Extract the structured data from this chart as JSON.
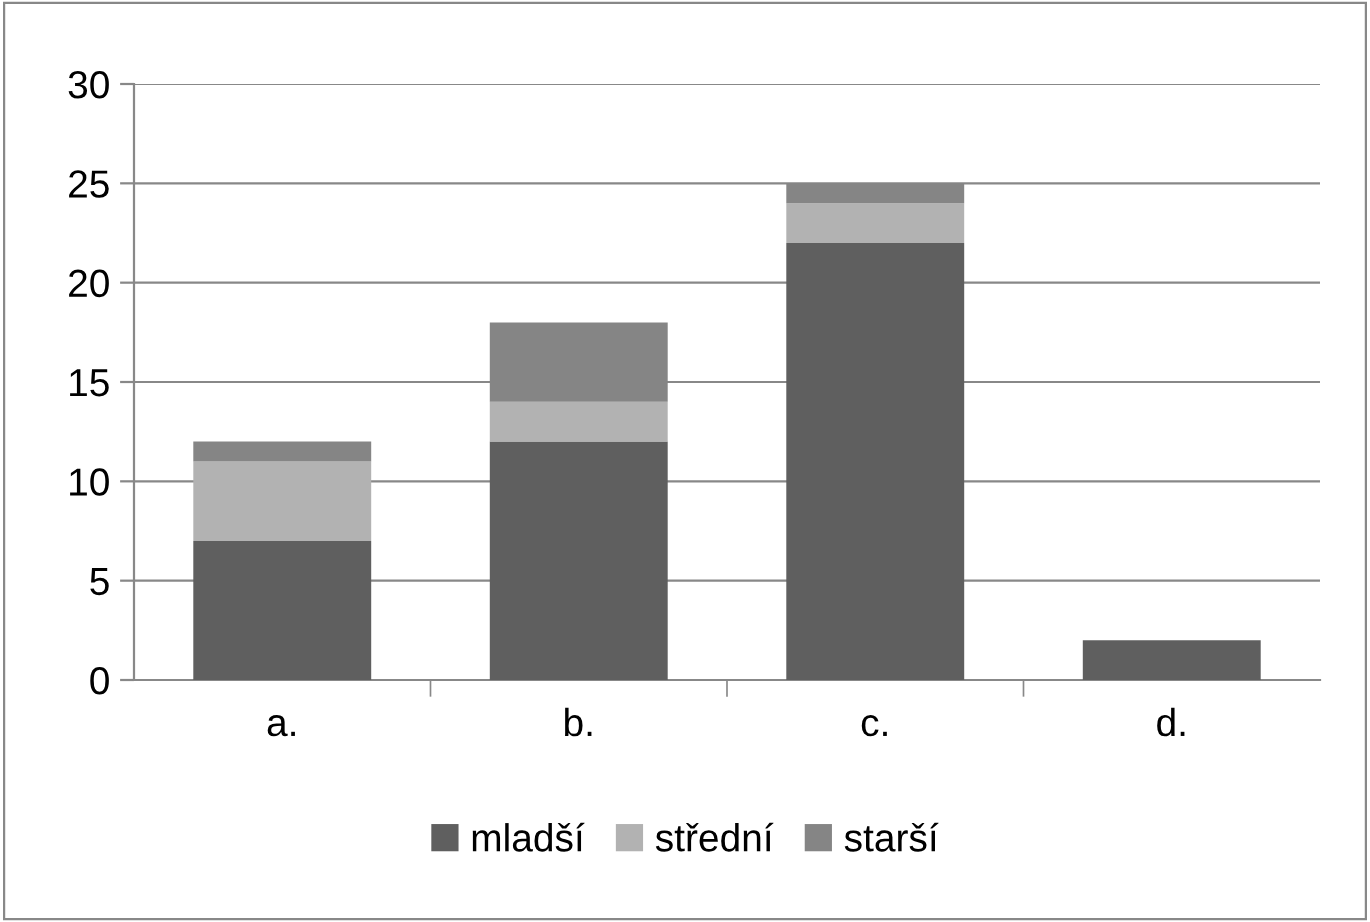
{
  "chart_data": {
    "type": "bar",
    "stacked": true,
    "categories": [
      "a.",
      "b.",
      "c.",
      "d."
    ],
    "series": [
      {
        "name": "mladší",
        "color": "#5f5f5f",
        "values": [
          7,
          12,
          22,
          2
        ]
      },
      {
        "name": "střední",
        "color": "#b2b2b2",
        "values": [
          4,
          2,
          2,
          0
        ]
      },
      {
        "name": "starší",
        "color": "#858585",
        "values": [
          1,
          4,
          1,
          0
        ]
      }
    ],
    "ylim": [
      0,
      30
    ],
    "yticks": [
      0,
      5,
      10,
      15,
      20,
      25,
      30
    ],
    "grid": "y",
    "legend": "bottom"
  }
}
